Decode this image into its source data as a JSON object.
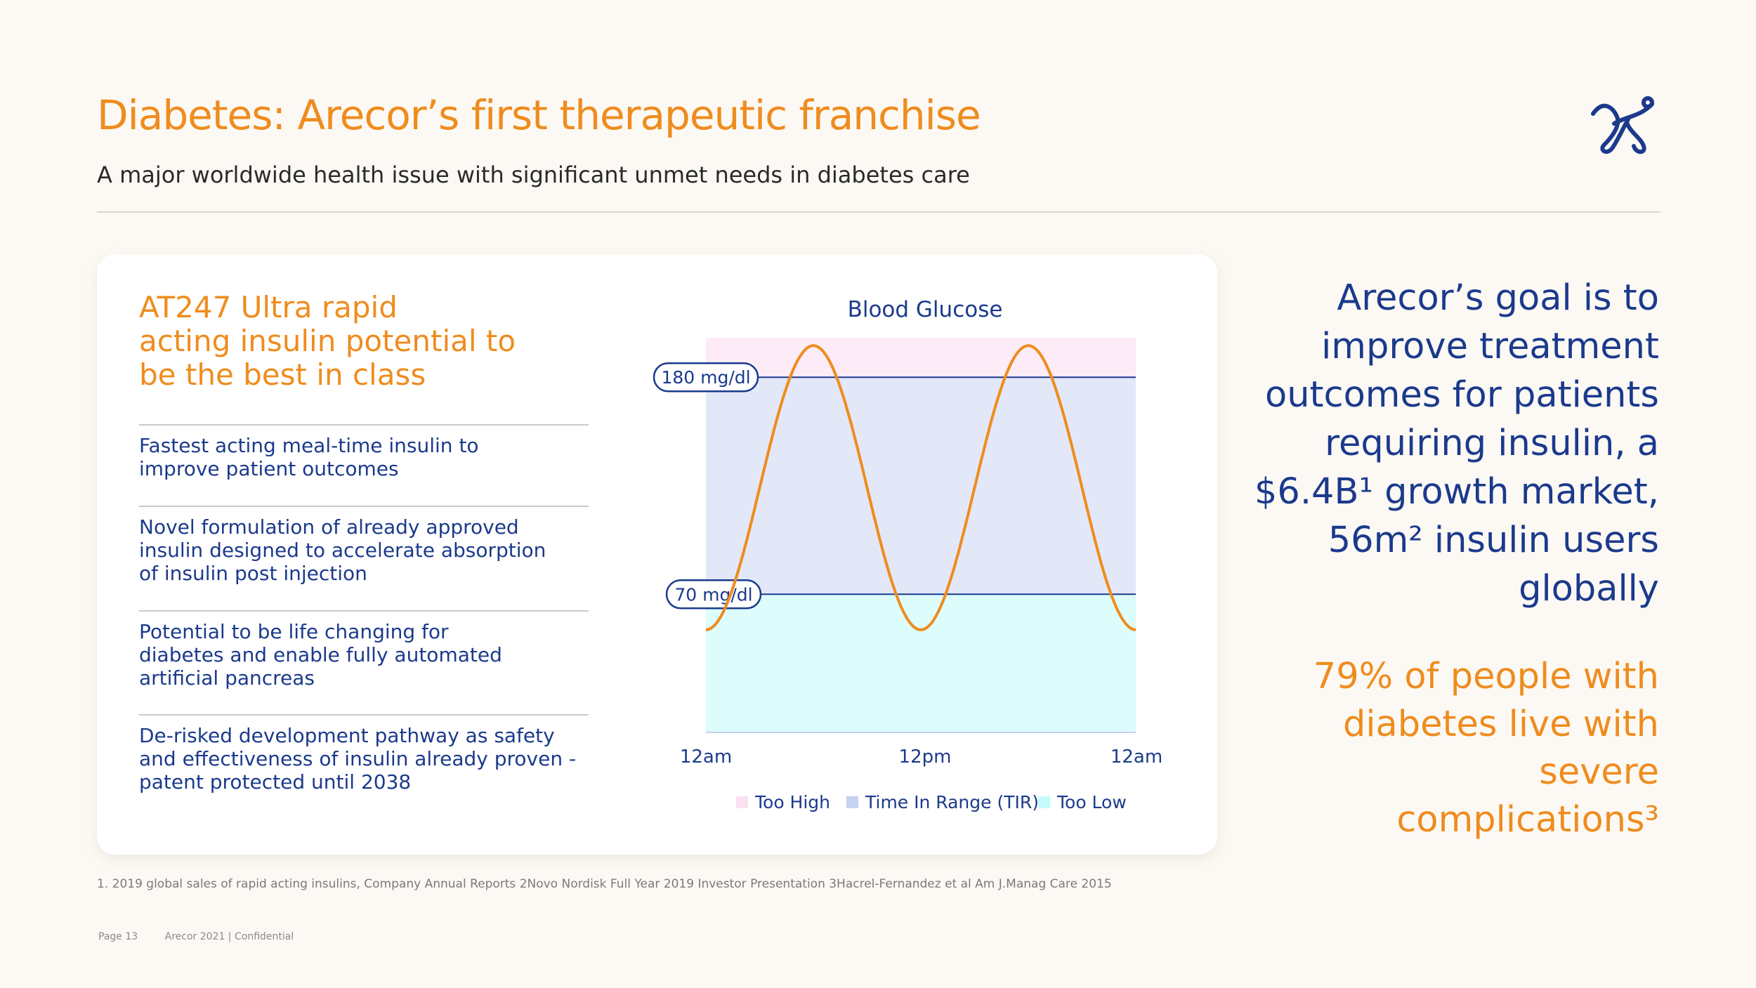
{
  "header": {
    "title": "Diabetes: Arecor’s first therapeutic franchise",
    "subtitle": "A major worldwide health issue with significant unmet needs in diabetes care"
  },
  "logo": {
    "icon": "arecor-logo-icon",
    "color": "#1b3a8c"
  },
  "card": {
    "heading_lines": [
      "AT247 Ultra rapid",
      "acting insulin potential to",
      "be the best in class"
    ],
    "bullets": [
      {
        "lines": [
          "Fastest acting meal-time insulin to",
          "improve patient outcomes"
        ]
      },
      {
        "lines": [
          "Novel formulation of already approved",
          "insulin designed to accelerate absorption",
          "of insulin post injection"
        ]
      },
      {
        "lines": [
          "Potential to be life changing for",
          "diabetes and enable fully automated",
          "artificial pancreas"
        ]
      },
      {
        "lines": [
          "De-risked development pathway as safety",
          "and effectiveness of insulin already proven -",
          "patent protected until 2038"
        ]
      }
    ]
  },
  "chart_data": {
    "type": "line",
    "title": "Blood Glucose",
    "x_ticks": [
      "12am",
      "12pm",
      "12am"
    ],
    "thresholds": [
      {
        "label": "180 mg/dl",
        "value": 180
      },
      {
        "label": "70 mg/dl",
        "value": 70
      }
    ],
    "ylim": [
      0,
      200
    ],
    "series": [
      {
        "x": [
          0,
          0.08,
          0.25,
          0.5,
          0.75,
          1
        ],
        "y": [
          52,
          70,
          196,
          52,
          196,
          52
        ]
      }
    ],
    "zones": [
      {
        "name": "Too High",
        "color": "#fbe0f1"
      },
      {
        "name": "Time In Range (TIR)",
        "color": "#c6d2f2"
      },
      {
        "name": "Too Low",
        "color": "#c4fbf9"
      }
    ],
    "line_color": "#ef8c1e",
    "legend_position": "bottom"
  },
  "goal": {
    "lines": [
      "Arecor’s goal is to",
      "improve treatment",
      "outcomes for patients",
      "requiring insulin, a",
      "$6.4B¹ growth market,",
      "56m² insulin users",
      "globally"
    ]
  },
  "stat": {
    "lines": [
      "79% of people with",
      "diabetes live with severe",
      "complications³"
    ]
  },
  "footnote": "1. 2019 global sales of rapid acting insulins, Company Annual Reports  2Novo Nordisk Full Year 2019 Investor Presentation 3Hacrel-Fernandez et al Am J.Manag Care 2015",
  "footer": {
    "page": "Page 13",
    "company": "Arecor 2021  |  Confidential"
  },
  "colors": {
    "accent": "#ef8c1e",
    "primary": "#1b3a8c"
  }
}
